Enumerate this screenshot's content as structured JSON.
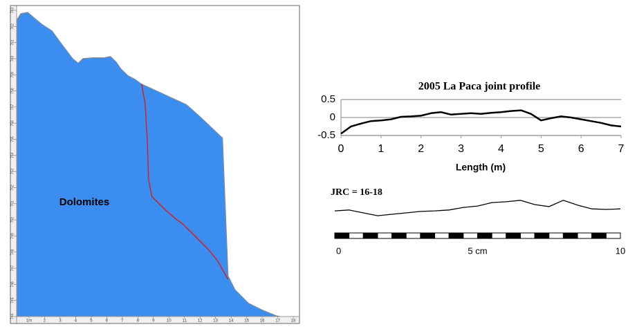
{
  "chart_data": [
    {
      "type": "area",
      "annotation": "Dolomites",
      "xlim": [
        0.2,
        18.4
      ],
      "ylim": [
        744,
        763.3
      ],
      "xticks": [
        {
          "value": 1,
          "label": "1m"
        },
        2,
        3,
        4,
        5,
        6,
        7,
        8,
        9,
        10,
        11,
        12,
        13,
        14,
        15,
        16,
        17,
        18
      ],
      "yticks": [
        744,
        745,
        746,
        747,
        748,
        749,
        750,
        751,
        752,
        753,
        754,
        755,
        756,
        757,
        758,
        759,
        760,
        761,
        762,
        763
      ],
      "series": [
        {
          "type": "area",
          "color": "#3b8ef0",
          "x": [
            0.2,
            0.47,
            0.91,
            1.27,
            1.8,
            2.47,
            3.13,
            3.8,
            4.16,
            4.47,
            5.13,
            5.8,
            6.24,
            6.6,
            6.91,
            7.36,
            7.8,
            8.24,
            11.13,
            12.02,
            13.44,
            13.8,
            14.24,
            15.13,
            16.02,
            16.91,
            17.13
          ],
          "values": [
            762.36,
            762.79,
            762.87,
            762.57,
            762.14,
            761.72,
            760.86,
            760.0,
            759.71,
            760.0,
            760.05,
            760.05,
            760.13,
            759.79,
            759.36,
            758.94,
            758.72,
            758.42,
            757.14,
            756.37,
            755.08,
            746.52,
            745.67,
            744.81,
            744.39,
            744.04,
            744
          ]
        },
        {
          "type": "line",
          "color": "#d42020",
          "x": [
            8.24,
            8.47,
            8.6,
            8.69,
            8.91,
            9.8,
            10.47,
            10.91,
            11.58,
            12.47,
            13.13,
            13.8
          ],
          "values": [
            758.42,
            757.22,
            755.08,
            752.51,
            751.44,
            750.59,
            750.03,
            749.73,
            749.09,
            748.23,
            747.46,
            746.31
          ]
        }
      ]
    },
    {
      "type": "line",
      "title": "2005 La Paca joint profile",
      "x_label": "Length (m)",
      "xlim": [
        0,
        7
      ],
      "ylim": [
        -0.5,
        0.5
      ],
      "xticks": [
        0,
        1,
        2,
        3,
        4,
        5,
        6,
        7
      ],
      "yticks": [
        0.5,
        0,
        -0.5
      ],
      "grid": true,
      "series": [
        {
          "color": "#000000",
          "x": [
            0,
            0.25,
            0.5,
            0.75,
            1,
            1.25,
            1.5,
            1.75,
            2,
            2.25,
            2.5,
            2.75,
            3,
            3.25,
            3.5,
            3.75,
            4,
            4.25,
            4.5,
            4.75,
            5,
            5.25,
            5.5,
            5.75,
            6,
            6.25,
            6.5,
            6.75,
            7
          ],
          "values": [
            -0.45,
            -0.25,
            -0.17,
            -0.1,
            -0.08,
            -0.05,
            0.02,
            0.03,
            0.05,
            0.12,
            0.15,
            0.08,
            0.1,
            0.12,
            0.1,
            0.13,
            0.15,
            0.18,
            0.2,
            0.1,
            -0.08,
            -0.02,
            0.03,
            0,
            -0.05,
            -0.1,
            -0.15,
            -0.22,
            -0.25
          ]
        }
      ]
    },
    {
      "type": "profile",
      "annotation": "JRC = 16-18",
      "xlim": [
        0,
        10
      ],
      "xticks": [
        0,
        {
          "value": 5,
          "label": "5 cm"
        },
        10
      ],
      "series": [
        {
          "color": "#000000",
          "x": [
            0,
            0.5,
            1,
            1.5,
            2,
            2.5,
            3,
            3.5,
            4,
            4.5,
            5,
            5.5,
            6,
            6.5,
            7,
            7.5,
            8,
            8.5,
            9,
            9.5,
            10
          ],
          "values": [
            0.24,
            0.27,
            0.17,
            0.07,
            0.12,
            0.17,
            0.22,
            0.24,
            0.27,
            0.36,
            0.41,
            0.53,
            0.56,
            0.61,
            0.46,
            0.39,
            0.61,
            0.44,
            0.31,
            0.29,
            0.31
          ]
        }
      ]
    }
  ]
}
